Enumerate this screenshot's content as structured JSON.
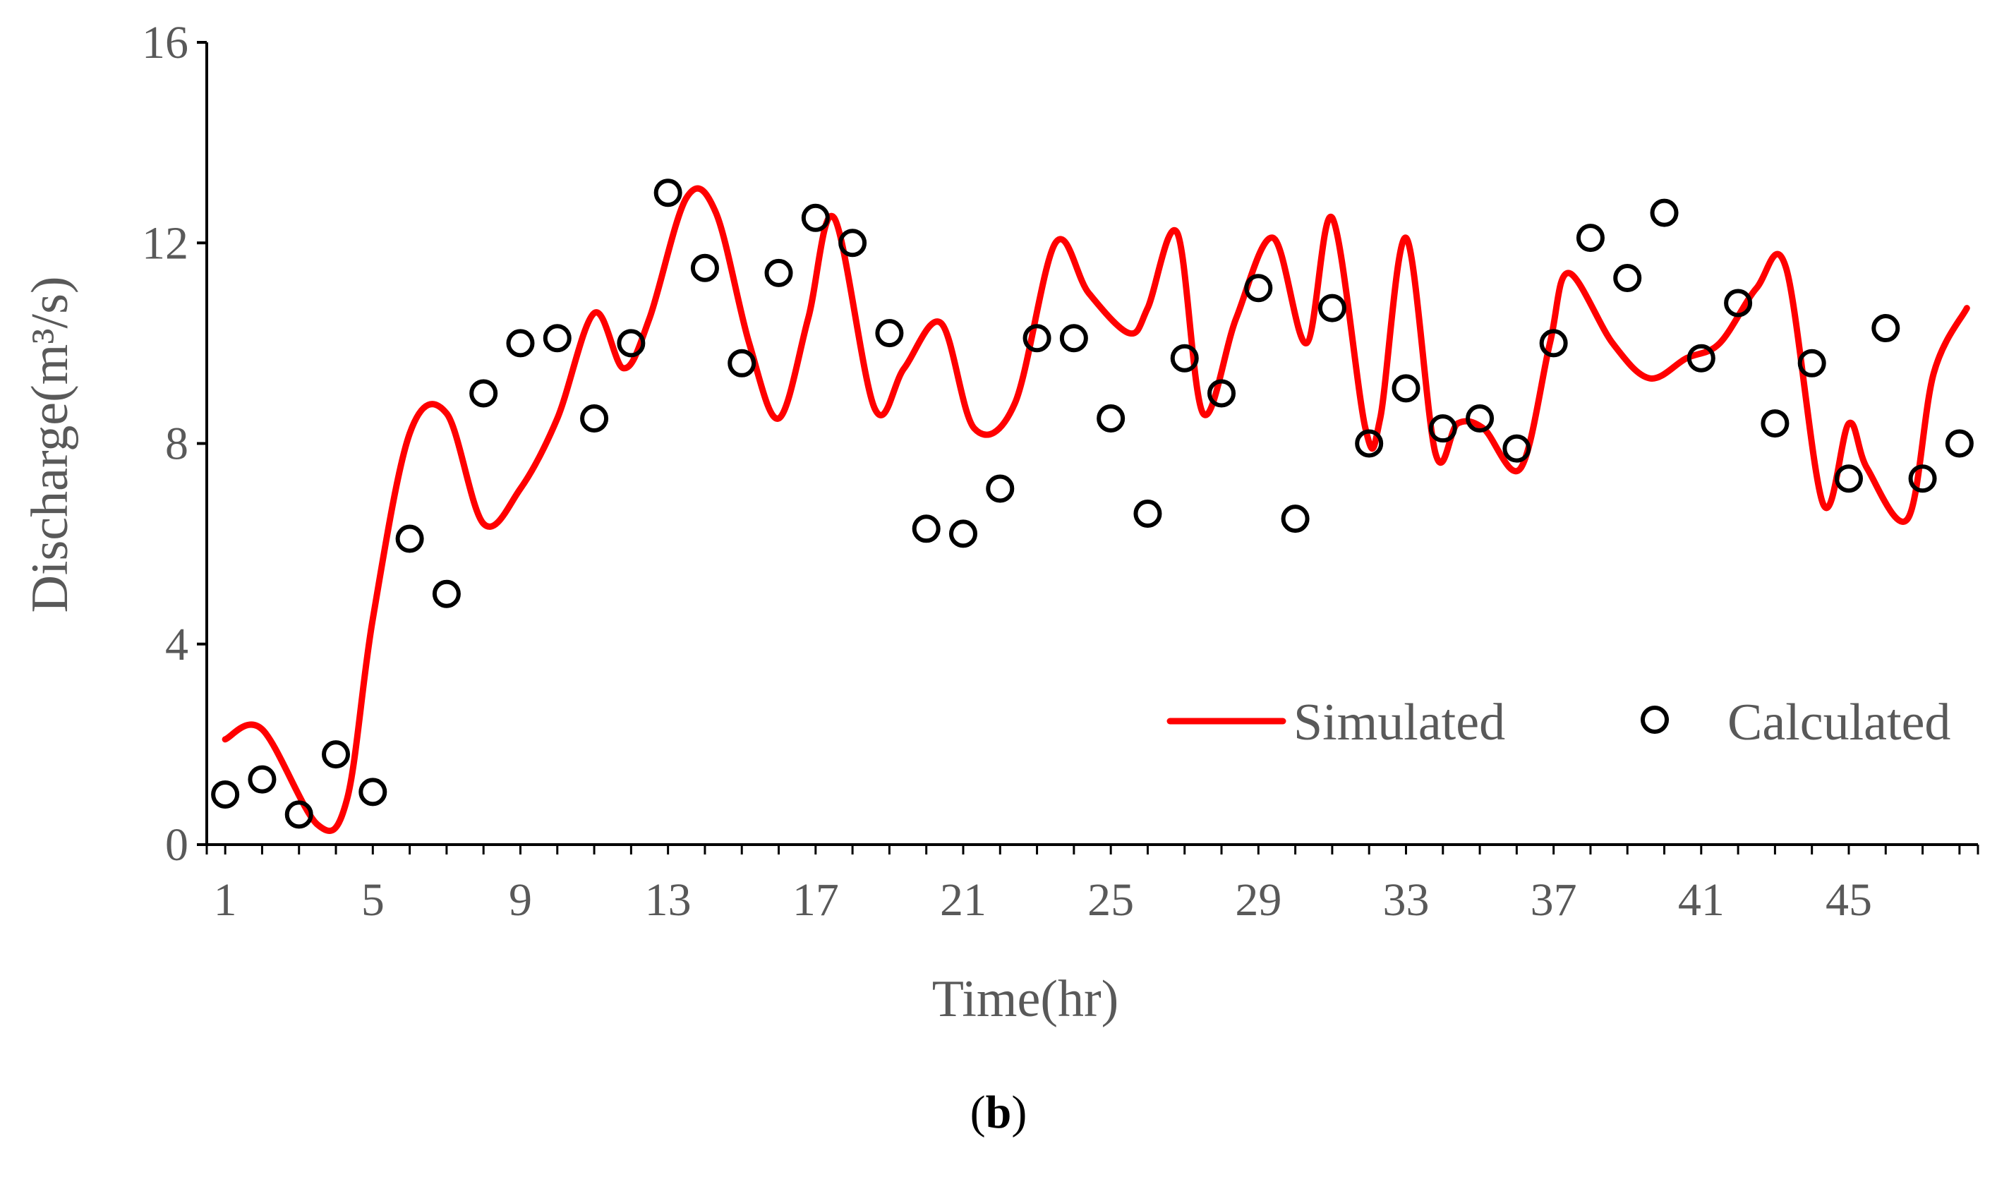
{
  "chart_data": {
    "type": "line",
    "title": "",
    "panel_label": {
      "open": "(",
      "letter": "b",
      "close": ")"
    },
    "xlabel": "Time(hr)",
    "ylabel": "Discharge(m³/s)",
    "xlim": [
      0.5,
      48.5
    ],
    "ylim": [
      0,
      16
    ],
    "yticks": [
      "0",
      "4",
      "8",
      "12",
      "16"
    ],
    "xtick_values": [
      1,
      5,
      9,
      13,
      17,
      21,
      25,
      29,
      33,
      37,
      41,
      45
    ],
    "xticks": [
      "1",
      "5",
      "9",
      "13",
      "17",
      "21",
      "25",
      "29",
      "33",
      "37",
      "41",
      "45"
    ],
    "grid": false,
    "legend_position": "bottom-right",
    "series": [
      {
        "name": "Simulated",
        "style": "line",
        "color": "#ff0000",
        "x": [
          1,
          2,
          3.5,
          4.3,
          5,
          6,
          7,
          8,
          9,
          10,
          11,
          11.8,
          12.5,
          13.5,
          14.3,
          15.2,
          16,
          16.8,
          17.5,
          18.6,
          19.4,
          20.4,
          21.3,
          22.4,
          23.5,
          24.4,
          25.5,
          26,
          26.8,
          27.5,
          28.4,
          29.4,
          30.3,
          31,
          31.9,
          32.3,
          33,
          33.8,
          34.4,
          35.1,
          36.1,
          36.9,
          37.4,
          38.6,
          39.6,
          40.6,
          41.5,
          42.5,
          43.3,
          44.3,
          45,
          45.5,
          46.6,
          47.3,
          48.2
        ],
        "y": [
          2.1,
          2.3,
          0.4,
          0.9,
          4.5,
          8.2,
          8.6,
          6.4,
          7.1,
          8.5,
          10.6,
          9.5,
          10.5,
          12.9,
          12.6,
          10,
          8.5,
          10.5,
          12.5,
          8.7,
          9.5,
          10.4,
          8.3,
          8.8,
          12,
          11,
          10.2,
          10.7,
          12.2,
          8.6,
          10.5,
          12.1,
          10,
          12.5,
          8.3,
          8.5,
          12.1,
          7.8,
          8.4,
          8.3,
          7.5,
          10,
          11.4,
          10,
          9.3,
          9.7,
          10,
          11.1,
          11.5,
          6.8,
          8.4,
          7.5,
          6.5,
          9.4,
          10.7
        ]
      },
      {
        "name": "Calculated",
        "style": "scatter",
        "marker": "open-circle",
        "color": "#000000",
        "x": [
          1,
          2,
          3,
          4,
          5,
          6,
          7,
          8,
          9,
          10,
          11,
          12,
          13,
          14,
          15,
          16,
          17,
          18,
          19,
          20,
          21,
          22,
          23,
          24,
          25,
          26,
          27,
          28,
          29,
          30,
          31,
          32,
          33,
          34,
          35,
          36,
          37,
          38,
          39,
          40,
          41,
          42,
          43,
          44,
          45,
          46,
          47,
          48
        ],
        "y": [
          1,
          1.3,
          0.6,
          1.8,
          1.05,
          6.1,
          5,
          9,
          10,
          10.1,
          8.5,
          10,
          13,
          11.5,
          9.6,
          11.4,
          12.5,
          12,
          10.2,
          6.3,
          6.2,
          7.1,
          10.1,
          10.1,
          8.5,
          6.6,
          9.7,
          9,
          11.1,
          6.5,
          10.7,
          8,
          9.1,
          8.3,
          8.5,
          7.9,
          10,
          12.1,
          11.3,
          12.6,
          9.7,
          10.8,
          8.4,
          9.6,
          7.3,
          10.3,
          7.3,
          8
        ]
      }
    ]
  }
}
